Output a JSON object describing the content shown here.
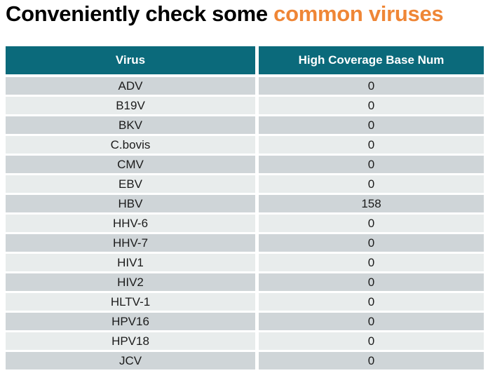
{
  "title": {
    "prefix": "Conveniently check some ",
    "highlight": "common viruses"
  },
  "colors": {
    "title_teal": "#17677A",
    "title_orange": "#EF8636",
    "header_bg": "#0B6A7B",
    "header_text": "#FFFFFF",
    "row_dark": "#CFD5D8",
    "row_light": "#E8ECEC",
    "row_text": "#1B1B1B"
  },
  "table": {
    "columns": [
      "Virus",
      "High Coverage Base Num"
    ],
    "rows": [
      {
        "virus": "ADV",
        "value": "0"
      },
      {
        "virus": "B19V",
        "value": "0"
      },
      {
        "virus": "BKV",
        "value": "0"
      },
      {
        "virus": "C.bovis",
        "value": "0"
      },
      {
        "virus": "CMV",
        "value": "0"
      },
      {
        "virus": "EBV",
        "value": "0"
      },
      {
        "virus": "HBV",
        "value": "158"
      },
      {
        "virus": "HHV-6",
        "value": "0"
      },
      {
        "virus": "HHV-7",
        "value": "0"
      },
      {
        "virus": "HIV1",
        "value": "0"
      },
      {
        "virus": "HIV2",
        "value": "0"
      },
      {
        "virus": "HLTV-1",
        "value": "0"
      },
      {
        "virus": "HPV16",
        "value": "0"
      },
      {
        "virus": "HPV18",
        "value": "0"
      },
      {
        "virus": "JCV",
        "value": "0"
      }
    ]
  },
  "chart_data": {
    "type": "table",
    "title": "Conveniently check some common viruses",
    "columns": [
      "Virus",
      "High Coverage Base Num"
    ],
    "rows": [
      [
        "ADV",
        0
      ],
      [
        "B19V",
        0
      ],
      [
        "BKV",
        0
      ],
      [
        "C.bovis",
        0
      ],
      [
        "CMV",
        0
      ],
      [
        "EBV",
        0
      ],
      [
        "HBV",
        158
      ],
      [
        "HHV-6",
        0
      ],
      [
        "HHV-7",
        0
      ],
      [
        "HIV1",
        0
      ],
      [
        "HIV2",
        0
      ],
      [
        "HLTV-1",
        0
      ],
      [
        "HPV16",
        0
      ],
      [
        "HPV18",
        0
      ],
      [
        "JCV",
        0
      ]
    ]
  }
}
